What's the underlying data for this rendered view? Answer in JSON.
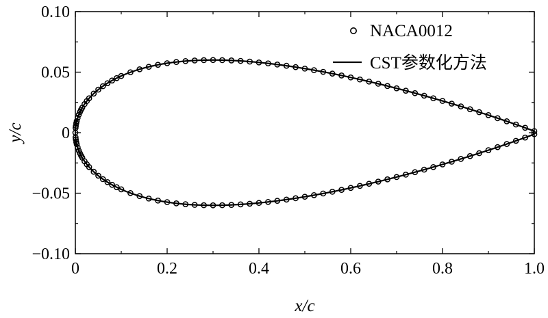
{
  "chart_data": {
    "type": "line",
    "title": "",
    "xlabel": "x/c",
    "ylabel": "y/c",
    "xlim": [
      0,
      1.0
    ],
    "ylim": [
      -0.1,
      0.1
    ],
    "x_ticks": [
      "0",
      "0.2",
      "0.4",
      "0.6",
      "0.8",
      "1.0"
    ],
    "x_tick_values": [
      0,
      0.2,
      0.4,
      0.6,
      0.8,
      1.0
    ],
    "y_ticks": [
      "0.10",
      "0.05",
      "0",
      "−0.05",
      "−0.10"
    ],
    "y_tick_values": [
      0.1,
      0.05,
      0,
      -0.05,
      -0.1
    ],
    "grid": false,
    "legend_position": "top-right",
    "series": [
      {
        "name": "NACA0012",
        "style": "markers",
        "marker": "open-circle",
        "equation": "yt = 0.6*(0.2969*sqrt(x) - 0.126*x - 0.3516*x^2 + 0.2843*x^3 - 0.1015*x^4)",
        "x": [
          0,
          0.0005,
          0.001,
          0.002,
          0.003,
          0.005,
          0.0075,
          0.01,
          0.0125,
          0.015,
          0.02,
          0.025,
          0.03,
          0.04,
          0.05,
          0.06,
          0.07,
          0.08,
          0.09,
          0.1,
          0.12,
          0.14,
          0.16,
          0.18,
          0.2,
          0.22,
          0.24,
          0.26,
          0.28,
          0.3,
          0.32,
          0.34,
          0.36,
          0.38,
          0.4,
          0.42,
          0.44,
          0.46,
          0.48,
          0.5,
          0.52,
          0.54,
          0.56,
          0.58,
          0.6,
          0.62,
          0.64,
          0.66,
          0.68,
          0.7,
          0.72,
          0.74,
          0.76,
          0.78,
          0.8,
          0.82,
          0.84,
          0.86,
          0.88,
          0.9,
          0.92,
          0.94,
          0.96,
          0.98,
          1.0
        ]
      },
      {
        "name": "CST参数化方法",
        "style": "line",
        "color": "#000000",
        "equation": "same thickness distribution, sampled densely"
      }
    ]
  }
}
